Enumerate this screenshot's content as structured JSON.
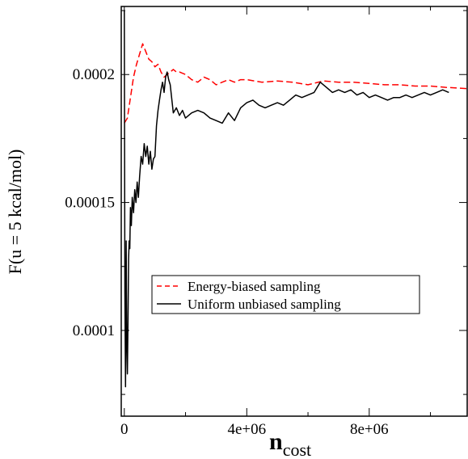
{
  "chart_data": {
    "type": "line",
    "title": "",
    "xlabel": "n",
    "xlabel_subscript": "cost",
    "ylabel": "F(u = 5 kcal/mol)",
    "xlim": [
      -100000,
      11200000
    ],
    "ylim": [
      6.65e-05,
      0.0002266
    ],
    "x_ticks": [
      0,
      4000000,
      8000000
    ],
    "x_tick_labels": [
      "0",
      "4e+06",
      "8e+06"
    ],
    "y_ticks": [
      0.0001,
      0.00015,
      0.0002
    ],
    "y_tick_labels": [
      "0.0001",
      "0.00015",
      "0.0002"
    ],
    "grid": false,
    "legend_position": "center",
    "series": [
      {
        "name": "Energy-biased sampling",
        "color": "#ff0000",
        "style": "dashed",
        "x": [
          0,
          50000,
          100000,
          200000,
          300000,
          400000,
          500000,
          600000,
          700000,
          800000,
          900000,
          1000000,
          1100000,
          1200000,
          1300000,
          1400000,
          1500000,
          1600000,
          1700000,
          1800000,
          2000000,
          2200000,
          2400000,
          2600000,
          2800000,
          3000000,
          3200000,
          3400000,
          3600000,
          3800000,
          4000000,
          4500000,
          5000000,
          5500000,
          6000000,
          6500000,
          7000000,
          7500000,
          8000000,
          8500000,
          9000000,
          9500000,
          10000000,
          10500000,
          11200000
        ],
        "y": [
          0.000181,
          0.000182,
          0.000183,
          0.000191,
          0.000199,
          0.000204,
          0.000208,
          0.000212,
          0.000209,
          0.000206,
          0.000205,
          0.000203,
          0.000204,
          0.000201,
          0.000199,
          0.0002,
          0.000201,
          0.000202,
          0.000201,
          0.000201,
          0.0002,
          0.000198,
          0.000197,
          0.000199,
          0.000198,
          0.000196,
          0.000197,
          0.000198,
          0.000197,
          0.000198,
          0.000198,
          0.000197,
          0.0001975,
          0.000197,
          0.000196,
          0.0001975,
          0.000197,
          0.000197,
          0.0001965,
          0.000196,
          0.000196,
          0.0001955,
          0.0001955,
          0.000195,
          0.0001945
        ]
      },
      {
        "name": "Uniform unbiased sampling",
        "color": "#000000",
        "style": "solid",
        "x": [
          0,
          20000,
          40000,
          60000,
          80000,
          100000,
          120000,
          140000,
          160000,
          180000,
          200000,
          230000,
          260000,
          300000,
          340000,
          380000,
          420000,
          460000,
          500000,
          550000,
          600000,
          650000,
          700000,
          750000,
          800000,
          850000,
          900000,
          950000,
          1000000,
          1050000,
          1100000,
          1150000,
          1200000,
          1250000,
          1300000,
          1350000,
          1400000,
          1450000,
          1500000,
          1600000,
          1700000,
          1800000,
          1900000,
          2000000,
          2200000,
          2400000,
          2600000,
          2800000,
          3000000,
          3200000,
          3400000,
          3600000,
          3800000,
          4000000,
          4200000,
          4400000,
          4600000,
          4800000,
          5000000,
          5200000,
          5400000,
          5600000,
          5800000,
          6000000,
          6200000,
          6400000,
          6600000,
          6800000,
          7000000,
          7200000,
          7400000,
          7600000,
          7800000,
          8000000,
          8200000,
          8400000,
          8600000,
          8800000,
          9000000,
          9200000,
          9400000,
          9600000,
          9800000,
          10000000,
          10200000,
          10400000,
          10600000
        ],
        "y": [
          0.000225,
          0.000115,
          7.8e-05,
          0.000135,
          9.5e-05,
          8.3e-05,
          0.000102,
          0.000128,
          0.000135,
          0.000132,
          0.000148,
          0.000141,
          0.000152,
          0.000146,
          0.000155,
          0.00015,
          0.000158,
          0.000152,
          0.00016,
          0.000168,
          0.000165,
          0.000173,
          0.000168,
          0.000172,
          0.000165,
          0.00017,
          0.000163,
          0.000167,
          0.000168,
          0.00018,
          0.000186,
          0.00019,
          0.000194,
          0.000197,
          0.000193,
          0.000199,
          0.000201,
          0.000198,
          0.000196,
          0.000185,
          0.000187,
          0.000184,
          0.000186,
          0.000183,
          0.000185,
          0.000186,
          0.000185,
          0.000183,
          0.000182,
          0.000181,
          0.000185,
          0.000182,
          0.000187,
          0.000189,
          0.00019,
          0.000188,
          0.000187,
          0.000188,
          0.000189,
          0.000188,
          0.00019,
          0.000192,
          0.000191,
          0.000192,
          0.000193,
          0.000197,
          0.000195,
          0.000193,
          0.000194,
          0.000193,
          0.000194,
          0.000192,
          0.000193,
          0.000191,
          0.000192,
          0.000191,
          0.00019,
          0.000191,
          0.000191,
          0.000192,
          0.000191,
          0.000192,
          0.000193,
          0.000192,
          0.000193,
          0.000194,
          0.000193
        ]
      }
    ]
  }
}
